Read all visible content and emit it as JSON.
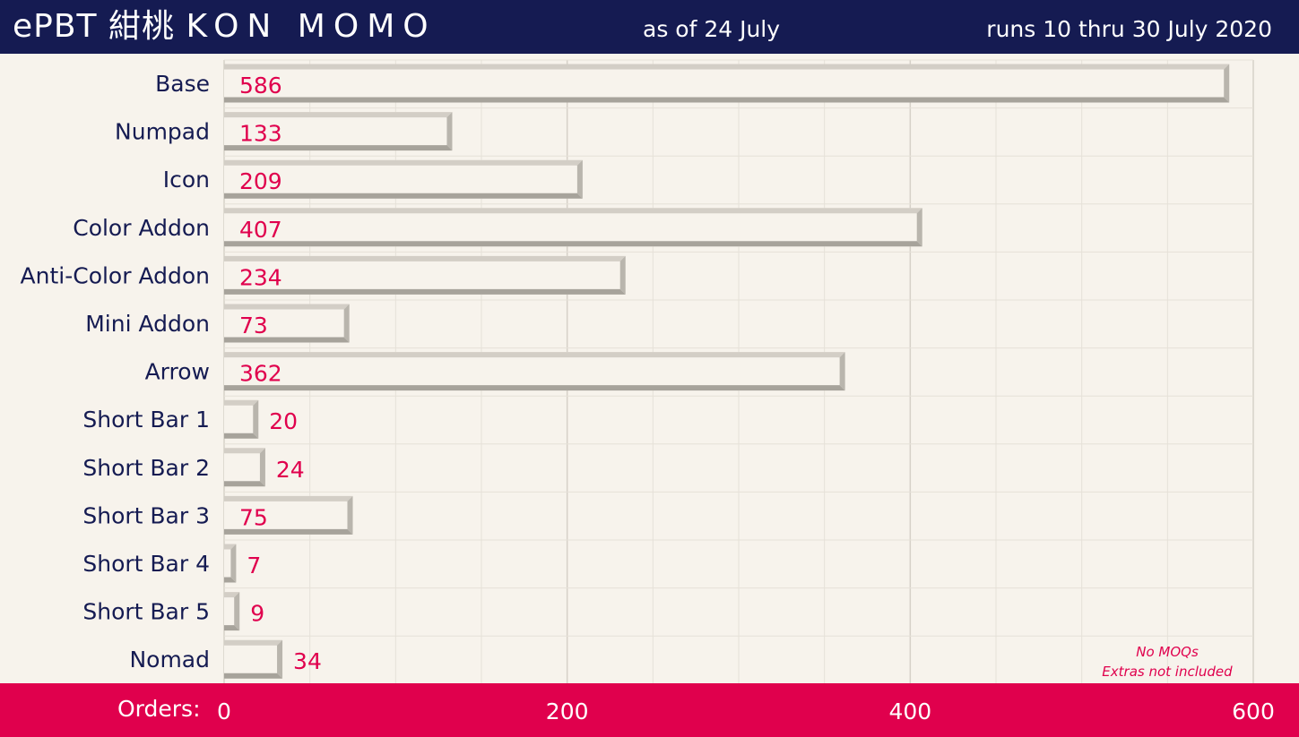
{
  "header": {
    "title_prefix": "ePBT 紺桃",
    "title_spaced": "KON MOMO",
    "as_of": "as of 24 July",
    "runs": "runs 10 thru 30 July 2020"
  },
  "footer": {
    "label": "Orders:"
  },
  "notes": [
    "No MOQs",
    "Extras not included"
  ],
  "colors": {
    "header_bg": "#151b52",
    "footer_bg": "#e0004d",
    "value_text": "#e0004d",
    "label_text": "#151b52",
    "plot_bg": "#f7f3ec",
    "bar_face": "#f7f3ec",
    "bar_bevel": "#a7a39b"
  },
  "chart_data": {
    "type": "bar",
    "orientation": "horizontal",
    "categories": [
      "Base",
      "Numpad",
      "Icon",
      "Color Addon",
      "Anti-Color Addon",
      "Mini Addon",
      "Arrow",
      "Short Bar 1",
      "Short Bar 2",
      "Short Bar 3",
      "Short Bar 4",
      "Short Bar 5",
      "Nomad"
    ],
    "values": [
      586,
      133,
      209,
      407,
      234,
      73,
      362,
      20,
      24,
      75,
      7,
      9,
      34
    ],
    "xlim": [
      0,
      600
    ],
    "xticks": [
      0,
      200,
      400,
      600
    ],
    "grid": true
  }
}
